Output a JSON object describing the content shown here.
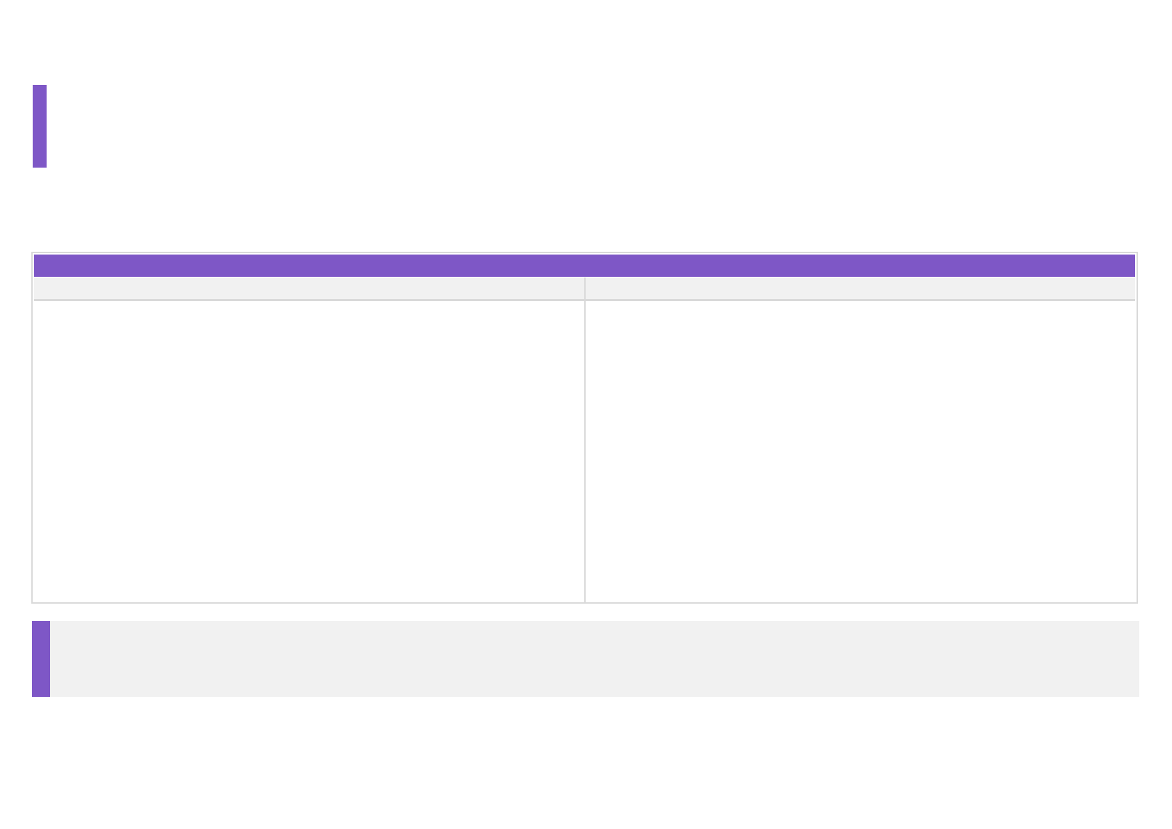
{
  "colors": {
    "accent": "#7e57c6",
    "panel_bg": "#f1f1f1",
    "border": "#d9d9d9"
  },
  "title": "",
  "table": {
    "header": "",
    "columns": [
      "",
      ""
    ],
    "cells": [
      "",
      ""
    ]
  },
  "note": ""
}
